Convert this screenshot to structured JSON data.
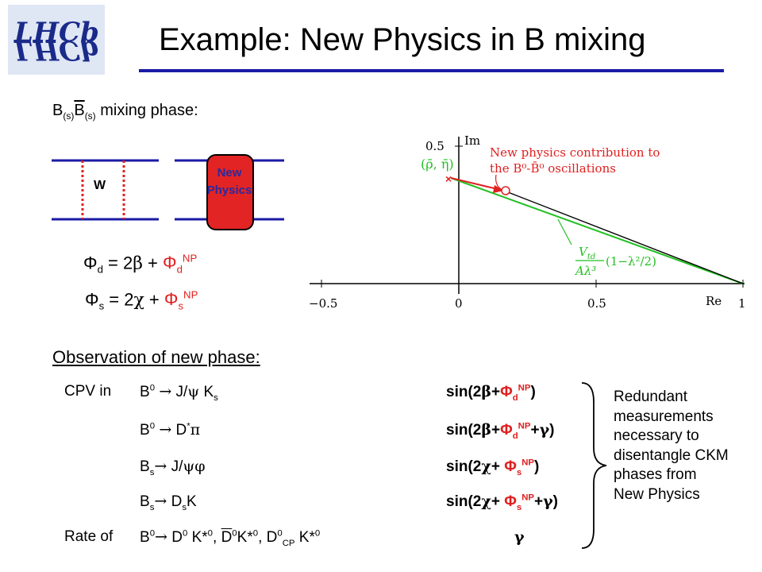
{
  "title": "Example: New Physics in B mixing",
  "logo_text": "LHCb",
  "mixing_heading": {
    "b1": "B",
    "s1": "(s)",
    "b2": "B",
    "s2": "(s)",
    "rest": " mixing phase:"
  },
  "diagrams": {
    "w_label": "W",
    "np_line1": "New",
    "np_line2": "Physics"
  },
  "phi_d": {
    "lhs": "Φ",
    "lhs_sub": "d",
    "mid": " = 2",
    "greek": "β",
    "plus": " + ",
    "rhs": "Φ",
    "rhs_sub": "d",
    "rhs_sup": "NP"
  },
  "phi_s": {
    "lhs": "Φ",
    "lhs_sub": "s",
    "mid": " = 2",
    "greek": "χ",
    "plus": " + ",
    "rhs": "Φ",
    "rhs_sub": "s",
    "rhs_sup": "NP"
  },
  "plot": {
    "tick_x_m05": "−0.5",
    "tick_x_0": "0",
    "tick_x_05": "0.5",
    "tick_x_1": "1",
    "tick_y_05": "0.5",
    "axis_re": "Re",
    "axis_im": "Im",
    "rho_eta": "(ρ̄, η̄)",
    "np_note_line1": "New physics contribution to",
    "np_note_line2": "the B⁰-B̄⁰ oscillations",
    "frac_num": "V",
    "frac_num_sub": "td",
    "frac_den": "Aλ³",
    "factor": "(1−λ²/2)"
  },
  "observation_heading": "Observation of new phase:",
  "rows": [
    {
      "lead": "CPV in",
      "decay_html": "B<sup>0</sup> <span class='greek'>→</span> J/<span class='greek'>ψ</span> K<sub>s</sub>",
      "result_html": "sin(2<span class='greek'>β</span>+<span class='red'>Φ<sub>d</sub><sup>NP</sup></span>)"
    },
    {
      "lead": "",
      "decay_html": "B<sup>0</sup> <span class='greek'>→</span> D<sup>*</sup><span class='greek'>π</span>",
      "result_html": "sin(2<span class='greek'>β</span>+<span class='red'>Φ<sub>d</sub><sup>NP</sup></span>+<span class='greek'>γ</span>)"
    },
    {
      "lead": "",
      "decay_html": "B<sub>s</sub><span class='greek'>→</span> J/<span class='greek'>ψφ</span>",
      "result_html": "sin(2<span class='greek'>χ</span>+ <span class='red'>Φ<sub>s</sub><sup>NP</sup></span>)"
    },
    {
      "lead": "",
      "decay_html": "B<sub>s</sub><span class='greek'>→</span> D<sub>s</sub>K",
      "result_html": "sin(2<span class='greek'>χ</span>+ <span class='red'>Φ<sub>s</sub><sup>NP</sup></span>+<span class='greek'>γ</span>)"
    },
    {
      "lead": "Rate of",
      "decay_html": "B<sup>0</sup><span class='greek'>→</span> D<sup>0</sup> K*<sup>0</sup>, <span class='ovl'>D</span><sup>0</sup>K*<sup>0</sup>, D<sup>0</sup><sub>CP</sub> K*<sup>0</sup>",
      "result_html": "<span class='greek'>γ</span>"
    }
  ],
  "brace_note": [
    "Redundant",
    "measurements",
    "necessary to",
    "disentangle CKM",
    "phases from",
    "New Physics"
  ]
}
